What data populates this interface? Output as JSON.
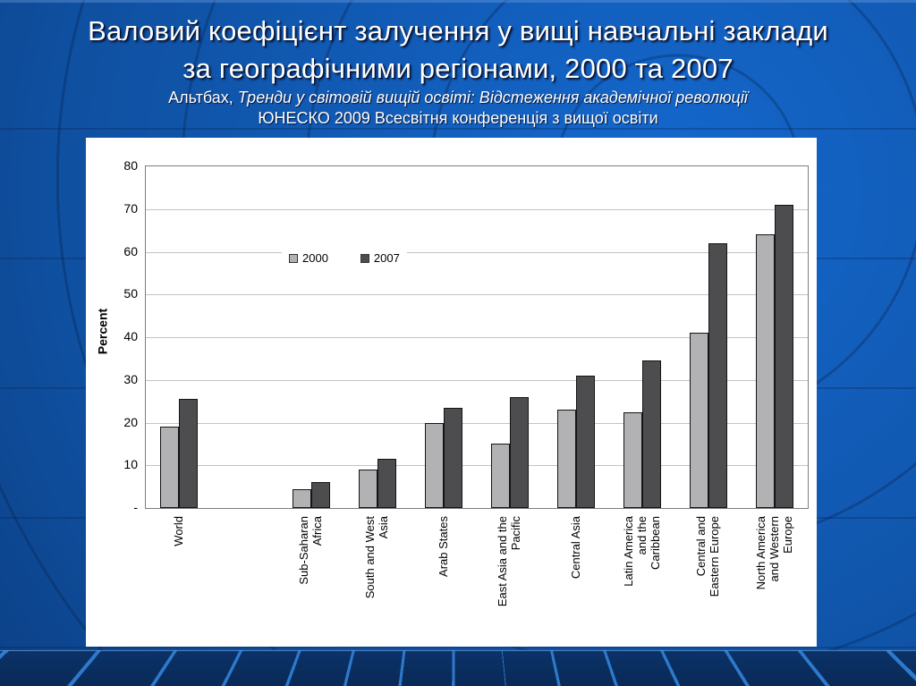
{
  "slide": {
    "title_line1": "Валовий коефіцієнт залучення у вищі навчальні заклади",
    "title_line2": "за географічними регіонами, 2000 та 2007",
    "subtitle_author": "Альтбах,",
    "subtitle_work": "Тренди у світовій вищій освіті: Відстеження академічної революції",
    "subtitle_line2": "ЮНЕСКО 2009 Всесвітня конференція з вищої освіти"
  },
  "chart_data": {
    "type": "bar",
    "title": "",
    "xlabel": "",
    "ylabel": "Percent",
    "ylim": [
      0,
      80
    ],
    "yticks": [
      0,
      10,
      20,
      30,
      40,
      50,
      60,
      70,
      80
    ],
    "ytick_labels": [
      "-",
      "10",
      "20",
      "30",
      "40",
      "50",
      "60",
      "70",
      "80"
    ],
    "grid": "horizontal",
    "legend_position": "inside-upper-left",
    "gap_after": "World",
    "categories": [
      "World",
      "Sub-Saharan\nAfrica",
      "South and West\nAsia",
      "Arab States",
      "East Asia and the\nPacific",
      "Central Asia",
      "Latin America\nand the\nCaribbean",
      "Central and\nEastern Europe",
      "North America\nand Western\nEurope"
    ],
    "series": [
      {
        "name": "2000",
        "color": "#b2b2b4",
        "values": [
          19,
          4.5,
          9,
          20,
          15,
          23,
          22.5,
          41,
          64
        ]
      },
      {
        "name": "2007",
        "color": "#4d4d50",
        "values": [
          25.5,
          6,
          11.5,
          23.5,
          26,
          31,
          34.5,
          62,
          71
        ]
      }
    ]
  },
  "colors": {
    "slide_bg_bright": "#1468ce",
    "slide_bg_dark": "#082f66",
    "band_bg": "#0a2c5e",
    "band_ray": "#2f7dd2",
    "panel_bg": "#ffffff",
    "plot_border": "#7d7d7d",
    "gridline": "#c3c3c3",
    "series_2000": "#b2b2b4",
    "series_2007": "#4d4d50",
    "title_color": "#ffffff"
  }
}
